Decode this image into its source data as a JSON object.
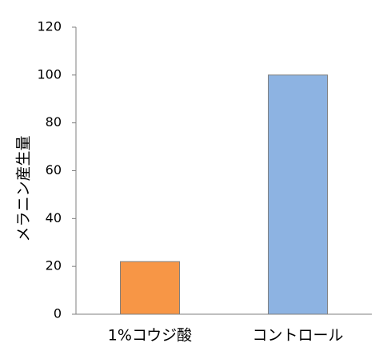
{
  "chart_data": {
    "type": "bar",
    "y_label": "メラニン産生量",
    "categories": [
      "1%コウジ酸",
      "コントロール"
    ],
    "values": [
      22,
      100
    ],
    "colors": [
      "#f79646",
      "#8db3e2"
    ],
    "ylim": [
      0,
      120
    ],
    "yticks": [
      0,
      20,
      40,
      60,
      80,
      100,
      120
    ]
  }
}
